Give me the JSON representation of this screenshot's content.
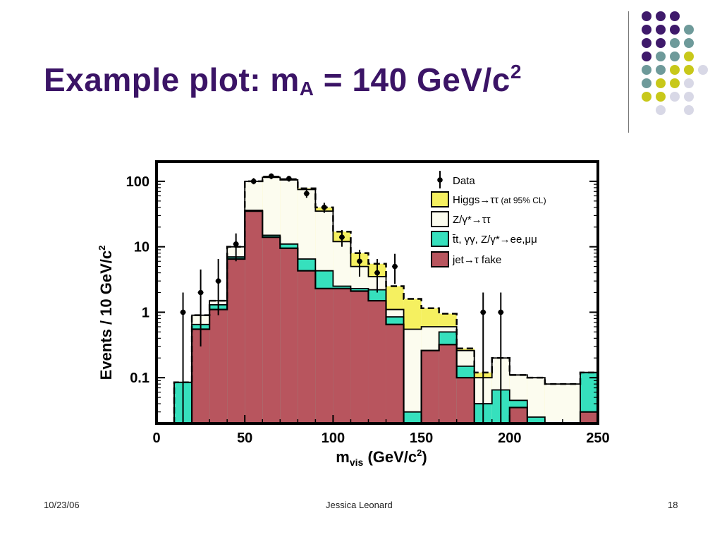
{
  "slide": {
    "title_main": "Example plot: m",
    "title_sub": "A",
    "title_rest": " = 140 GeV/c",
    "title_sup": "2",
    "footer_date": "10/23/06",
    "footer_author": "Jessica Leonard",
    "footer_page": "18",
    "colors": {
      "title": "#3b1466",
      "dot_purple": "#3f1a6b",
      "dot_teal": "#6e9a9a",
      "dot_yellow": "#c8c81a",
      "dot_lavender": "#d8d8e6"
    }
  },
  "chart_data": {
    "type": "histogram",
    "xlabel_main": "m",
    "xlabel_sub": "vis",
    "xlabel_rest": " (GeV/c",
    "xlabel_sup": "2",
    "xlabel_close": ")",
    "ylabel_main": "Events / 10 GeV/c",
    "ylabel_sup": "2",
    "xlim": [
      0,
      250
    ],
    "ylim": [
      0.02,
      200
    ],
    "yscale": "log",
    "xticks": [
      "0",
      "50",
      "100",
      "150",
      "200",
      "250"
    ],
    "xtick_values": [
      0,
      50,
      100,
      150,
      200,
      250
    ],
    "yticks": [
      "100",
      "10",
      "1",
      "0.1"
    ],
    "ytick_values": [
      100,
      10,
      1,
      0.1
    ],
    "legend_position": "top-right",
    "legend": [
      {
        "main": "Data"
      },
      {
        "main": "Higgs→ττ",
        "small": " (at 95% CL)"
      },
      {
        "main": "Z/γ*→ττ"
      },
      {
        "main": "t̄t, γγ, Z/γ*→ee,μμ"
      },
      {
        "main": "jet→τ fake"
      }
    ],
    "colors": {
      "higgs": "#f5f060",
      "ztautau": "#fcfcef",
      "other": "#36e0bd",
      "fake": "#b8555e",
      "frame": "#000000"
    },
    "bins": [
      {
        "lo": 10,
        "hi": 20,
        "fake": 0.01,
        "other": 0.085,
        "ztautau": 0.085,
        "higgs": 0.085
      },
      {
        "lo": 20,
        "hi": 30,
        "fake": 0.55,
        "other": 0.65,
        "ztautau": 0.9,
        "higgs": 0.9
      },
      {
        "lo": 30,
        "hi": 40,
        "fake": 1.1,
        "other": 1.3,
        "ztautau": 1.5,
        "higgs": 1.5
      },
      {
        "lo": 40,
        "hi": 50,
        "fake": 6.5,
        "other": 7.0,
        "ztautau": 10,
        "higgs": 10
      },
      {
        "lo": 50,
        "hi": 60,
        "fake": 35,
        "other": 36,
        "ztautau": 100,
        "higgs": 100
      },
      {
        "lo": 60,
        "hi": 70,
        "fake": 14,
        "other": 15,
        "ztautau": 115,
        "higgs": 118
      },
      {
        "lo": 70,
        "hi": 80,
        "fake": 9.5,
        "other": 11,
        "ztautau": 105,
        "higgs": 108
      },
      {
        "lo": 80,
        "hi": 90,
        "fake": 4.3,
        "other": 6.5,
        "ztautau": 75,
        "higgs": 78
      },
      {
        "lo": 90,
        "hi": 100,
        "fake": 2.3,
        "other": 4.3,
        "ztautau": 35,
        "higgs": 40
      },
      {
        "lo": 100,
        "hi": 110,
        "fake": 2.3,
        "other": 2.5,
        "ztautau": 12,
        "higgs": 17
      },
      {
        "lo": 110,
        "hi": 120,
        "fake": 2.1,
        "other": 2.3,
        "ztautau": 5,
        "higgs": 8
      },
      {
        "lo": 120,
        "hi": 130,
        "fake": 1.5,
        "other": 2.2,
        "ztautau": 3.5,
        "higgs": 5.5
      },
      {
        "lo": 130,
        "hi": 140,
        "fake": 0.65,
        "other": 0.85,
        "ztautau": 1.1,
        "higgs": 2.5
      },
      {
        "lo": 140,
        "hi": 150,
        "fake": 0.02,
        "other": 0.03,
        "ztautau": 0.55,
        "higgs": 1.6
      },
      {
        "lo": 150,
        "hi": 160,
        "fake": 0.26,
        "other": 0.26,
        "ztautau": 0.6,
        "higgs": 1.15
      },
      {
        "lo": 160,
        "hi": 170,
        "fake": 0.32,
        "other": 0.5,
        "ztautau": 0.6,
        "higgs": 0.95
      },
      {
        "lo": 170,
        "hi": 180,
        "fake": 0.1,
        "other": 0.15,
        "ztautau": 0.26,
        "higgs": 0.28
      },
      {
        "lo": 180,
        "hi": 190,
        "fake": 0.02,
        "other": 0.04,
        "ztautau": 0.1,
        "higgs": 0.12
      },
      {
        "lo": 190,
        "hi": 200,
        "fake": 0.02,
        "other": 0.065,
        "ztautau": 0.2,
        "higgs": 0.2
      },
      {
        "lo": 200,
        "hi": 210,
        "fake": 0.035,
        "other": 0.045,
        "ztautau": 0.11,
        "higgs": 0.11
      },
      {
        "lo": 210,
        "hi": 220,
        "fake": 0.02,
        "other": 0.025,
        "ztautau": 0.1,
        "higgs": 0.1
      },
      {
        "lo": 220,
        "hi": 240,
        "fake": 0.02,
        "other": 0.02,
        "ztautau": 0.08,
        "higgs": 0.08
      },
      {
        "lo": 240,
        "hi": 250,
        "fake": 0.03,
        "other": 0.12,
        "ztautau": 0.12,
        "higgs": 0.12
      }
    ],
    "data_points": [
      {
        "x": 15,
        "y": 1.0,
        "lo": 0.02,
        "hi": 2.0
      },
      {
        "x": 25,
        "y": 2.0,
        "lo": 0.3,
        "hi": 4.5
      },
      {
        "x": 35,
        "y": 3.0,
        "lo": 0.9,
        "hi": 6.5
      },
      {
        "x": 45,
        "y": 11,
        "lo": 6,
        "hi": 16
      },
      {
        "x": 55,
        "y": 100,
        "lo": 90,
        "hi": 112
      },
      {
        "x": 65,
        "y": 120,
        "lo": 108,
        "hi": 132
      },
      {
        "x": 75,
        "y": 110,
        "lo": 99,
        "hi": 121
      },
      {
        "x": 85,
        "y": 65,
        "lo": 56,
        "hi": 74
      },
      {
        "x": 95,
        "y": 40,
        "lo": 33,
        "hi": 47
      },
      {
        "x": 105,
        "y": 14,
        "lo": 10,
        "hi": 18
      },
      {
        "x": 115,
        "y": 6,
        "lo": 3.5,
        "hi": 9
      },
      {
        "x": 125,
        "y": 4,
        "lo": 2,
        "hi": 6.5
      },
      {
        "x": 135,
        "y": 5,
        "lo": 2.7,
        "hi": 7.8
      },
      {
        "x": 185,
        "y": 1.0,
        "lo": 0.02,
        "hi": 2.0
      },
      {
        "x": 195,
        "y": 1.0,
        "lo": 0.02,
        "hi": 2.0
      }
    ]
  }
}
